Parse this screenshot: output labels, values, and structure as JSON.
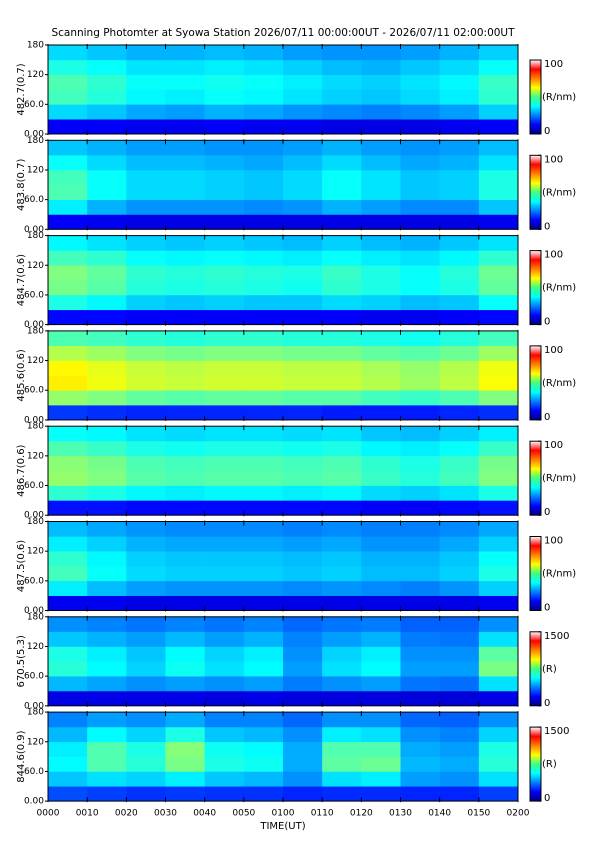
{
  "chart_data": [
    {
      "type": "heatmap",
      "title": "Scanning Photomter at Syowa Station 2026/07/11 00:00:00UT - 2026/07/11 02:00:00UT",
      "ylabel": "482.7(0.7)",
      "xlim": [
        0,
        120
      ],
      "xbins": [
        0,
        10,
        20,
        30,
        40,
        50,
        60,
        70,
        80,
        90,
        100,
        110,
        120
      ],
      "ylim": [
        0,
        180
      ],
      "ybins": [
        0,
        30,
        60,
        90,
        120,
        150,
        180
      ],
      "yticks": [
        180,
        120,
        {
          "value": 60,
          "label": "60.0"
        },
        {
          "value": 0,
          "label": "0.00"
        }
      ],
      "clim": [
        0,
        100
      ],
      "cticks": [
        100,
        0
      ],
      "clabel": "(R/nm)",
      "values": [
        [
          12,
          12,
          11,
          11,
          12,
          11,
          11,
          10,
          10,
          10,
          11,
          12
        ],
        [
          34,
          32,
          29,
          28,
          30,
          29,
          27,
          26,
          25,
          26,
          28,
          33
        ],
        [
          44,
          41,
          37,
          36,
          38,
          37,
          35,
          33,
          32,
          34,
          36,
          42
        ],
        [
          45,
          42,
          38,
          38,
          39,
          38,
          36,
          34,
          33,
          35,
          37,
          43
        ],
        [
          40,
          38,
          35,
          35,
          36,
          35,
          33,
          31,
          30,
          32,
          34,
          38
        ],
        [
          34,
          32,
          30,
          30,
          31,
          30,
          28,
          27,
          27,
          28,
          30,
          33
        ]
      ]
    },
    {
      "type": "heatmap",
      "ylabel": "483.8(0.7)",
      "xlim": [
        0,
        120
      ],
      "xbins": [
        0,
        10,
        20,
        30,
        40,
        50,
        60,
        70,
        80,
        90,
        100,
        110,
        120
      ],
      "ylim": [
        0,
        180
      ],
      "ybins": [
        0,
        30,
        60,
        90,
        120,
        150,
        180
      ],
      "yticks": [
        180,
        120,
        {
          "value": 60,
          "label": "60.0"
        },
        {
          "value": 0,
          "label": "0.00"
        }
      ],
      "clim": [
        0,
        100
      ],
      "cticks": [
        100,
        0
      ],
      "clabel": "(R/nm)",
      "values": [
        [
          12,
          11,
          10,
          10,
          10,
          10,
          10,
          10,
          10,
          10,
          10,
          11
        ],
        [
          36,
          30,
          27,
          27,
          27,
          26,
          27,
          30,
          28,
          26,
          26,
          32
        ],
        [
          45,
          38,
          34,
          34,
          33,
          32,
          34,
          38,
          35,
          32,
          33,
          40
        ],
        [
          44,
          38,
          34,
          34,
          33,
          32,
          34,
          38,
          35,
          32,
          33,
          40
        ],
        [
          38,
          34,
          31,
          31,
          30,
          29,
          31,
          34,
          31,
          29,
          30,
          35
        ],
        [
          32,
          30,
          28,
          28,
          27,
          27,
          28,
          30,
          28,
          27,
          28,
          31
        ]
      ]
    },
    {
      "type": "heatmap",
      "ylabel": "484.7(0.6)",
      "xlim": [
        0,
        120
      ],
      "xbins": [
        0,
        10,
        20,
        30,
        40,
        50,
        60,
        70,
        80,
        90,
        100,
        110,
        120
      ],
      "ylim": [
        0,
        180
      ],
      "ybins": [
        0,
        30,
        60,
        90,
        120,
        150,
        180
      ],
      "yticks": [
        180,
        120,
        {
          "value": 60,
          "label": "60.0"
        },
        {
          "value": 0,
          "label": "0.00"
        }
      ],
      "clim": [
        0,
        100
      ],
      "cticks": [
        100,
        0
      ],
      "clabel": "(R/nm)",
      "values": [
        [
          13,
          13,
          12,
          12,
          12,
          12,
          12,
          12,
          11,
          11,
          12,
          13
        ],
        [
          40,
          37,
          33,
          32,
          33,
          32,
          32,
          34,
          33,
          31,
          32,
          38
        ],
        [
          49,
          46,
          41,
          40,
          41,
          40,
          39,
          42,
          40,
          38,
          40,
          47
        ],
        [
          50,
          47,
          42,
          41,
          42,
          41,
          40,
          43,
          40,
          38,
          41,
          48
        ],
        [
          44,
          42,
          38,
          37,
          38,
          37,
          36,
          38,
          36,
          35,
          37,
          42
        ],
        [
          37,
          35,
          33,
          32,
          33,
          32,
          31,
          33,
          31,
          30,
          32,
          35
        ]
      ]
    },
    {
      "type": "heatmap",
      "ylabel": "485.6(0.6)",
      "xlim": [
        0,
        120
      ],
      "xbins": [
        0,
        10,
        20,
        30,
        40,
        50,
        60,
        70,
        80,
        90,
        100,
        110,
        120
      ],
      "ylim": [
        0,
        180
      ],
      "ybins": [
        0,
        30,
        60,
        90,
        120,
        150,
        180
      ],
      "yticks": [
        180,
        120,
        {
          "value": 60,
          "label": "60.0"
        },
        {
          "value": 0,
          "label": "0.00"
        }
      ],
      "clim": [
        0,
        100
      ],
      "cticks": [
        100,
        0
      ],
      "clabel": "(R/nm)",
      "values": [
        [
          18,
          17,
          16,
          16,
          16,
          16,
          16,
          15,
          15,
          15,
          16,
          17
        ],
        [
          52,
          50,
          47,
          46,
          47,
          47,
          46,
          46,
          44,
          43,
          45,
          50
        ],
        [
          64,
          61,
          58,
          57,
          58,
          58,
          57,
          57,
          55,
          53,
          56,
          62
        ],
        [
          63,
          60,
          57,
          56,
          57,
          57,
          56,
          56,
          54,
          52,
          55,
          61
        ],
        [
          55,
          53,
          50,
          49,
          50,
          50,
          49,
          49,
          47,
          46,
          48,
          53
        ],
        [
          45,
          44,
          42,
          41,
          42,
          42,
          41,
          41,
          40,
          39,
          41,
          44
        ]
      ]
    },
    {
      "type": "heatmap",
      "ylabel": "486.7(0.6)",
      "xlim": [
        0,
        120
      ],
      "xbins": [
        0,
        10,
        20,
        30,
        40,
        50,
        60,
        70,
        80,
        90,
        100,
        110,
        120
      ],
      "ylim": [
        0,
        180
      ],
      "ybins": [
        0,
        30,
        60,
        90,
        120,
        150,
        180
      ],
      "yticks": [
        180,
        120,
        {
          "value": 60,
          "label": "60.0"
        },
        {
          "value": 0,
          "label": "0.00"
        }
      ],
      "clim": [
        0,
        100
      ],
      "cticks": [
        100,
        0
      ],
      "clabel": "(R/nm)",
      "values": [
        [
          14,
          14,
          13,
          13,
          13,
          13,
          13,
          13,
          12,
          12,
          13,
          14
        ],
        [
          42,
          40,
          37,
          36,
          37,
          37,
          36,
          37,
          34,
          33,
          35,
          40
        ],
        [
          52,
          50,
          46,
          45,
          46,
          46,
          45,
          46,
          43,
          41,
          44,
          50
        ],
        [
          51,
          49,
          45,
          44,
          45,
          45,
          44,
          45,
          42,
          40,
          43,
          49
        ],
        [
          45,
          43,
          40,
          39,
          40,
          40,
          39,
          40,
          37,
          36,
          38,
          43
        ],
        [
          38,
          37,
          35,
          34,
          35,
          35,
          34,
          35,
          32,
          31,
          33,
          36
        ]
      ]
    },
    {
      "type": "heatmap",
      "ylabel": "487.5(0.6)",
      "xlim": [
        0,
        120
      ],
      "xbins": [
        0,
        10,
        20,
        30,
        40,
        50,
        60,
        70,
        80,
        90,
        100,
        110,
        120
      ],
      "ylim": [
        0,
        180
      ],
      "ybins": [
        0,
        30,
        60,
        90,
        120,
        150,
        180
      ],
      "yticks": [
        180,
        120,
        {
          "value": 60,
          "label": "60.0"
        },
        {
          "value": 0,
          "label": "0.00"
        }
      ],
      "clim": [
        0,
        100
      ],
      "cticks": [
        100,
        0
      ],
      "clabel": "(R/nm)",
      "values": [
        [
          11,
          11,
          10,
          10,
          10,
          10,
          10,
          10,
          10,
          10,
          10,
          11
        ],
        [
          36,
          31,
          28,
          27,
          27,
          27,
          26,
          27,
          26,
          25,
          27,
          33
        ],
        [
          44,
          38,
          34,
          33,
          33,
          33,
          32,
          33,
          31,
          31,
          33,
          40
        ],
        [
          42,
          37,
          33,
          32,
          32,
          32,
          31,
          32,
          30,
          30,
          32,
          38
        ],
        [
          36,
          33,
          30,
          29,
          29,
          29,
          28,
          29,
          27,
          27,
          29,
          33
        ],
        [
          31,
          29,
          27,
          26,
          26,
          26,
          25,
          26,
          25,
          25,
          26,
          29
        ]
      ]
    },
    {
      "type": "heatmap",
      "ylabel": "670.5(5.3)",
      "xlim": [
        0,
        120
      ],
      "xbins": [
        0,
        10,
        20,
        30,
        40,
        50,
        60,
        70,
        80,
        90,
        100,
        110,
        120
      ],
      "ylim": [
        0,
        180
      ],
      "ybins": [
        0,
        30,
        60,
        90,
        120,
        150,
        180
      ],
      "yticks": [
        180,
        120,
        {
          "value": 60,
          "label": "60.0"
        },
        {
          "value": 0,
          "label": "0.00"
        }
      ],
      "clim": [
        0,
        1500
      ],
      "cticks": [
        1500,
        0
      ],
      "clabel": "(R)",
      "values": [
        [
          150,
          150,
          150,
          150,
          140,
          150,
          140,
          140,
          140,
          130,
          130,
          150
        ],
        [
          460,
          430,
          400,
          420,
          400,
          420,
          370,
          400,
          420,
          360,
          350,
          520
        ],
        [
          620,
          560,
          500,
          580,
          520,
          560,
          420,
          520,
          560,
          420,
          420,
          740
        ],
        [
          600,
          540,
          480,
          560,
          500,
          540,
          400,
          500,
          540,
          400,
          400,
          700
        ],
        [
          480,
          450,
          420,
          460,
          420,
          450,
          380,
          420,
          450,
          370,
          360,
          520
        ],
        [
          400,
          380,
          360,
          380,
          360,
          380,
          340,
          360,
          370,
          330,
          330,
          400
        ]
      ]
    },
    {
      "type": "heatmap",
      "ylabel": "844.6(0.9)",
      "xlabel": "TIME(UT)",
      "xlim": [
        0,
        120
      ],
      "xbins": [
        0,
        10,
        20,
        30,
        40,
        50,
        60,
        70,
        80,
        90,
        100,
        110,
        120
      ],
      "ylim": [
        0,
        180
      ],
      "ybins": [
        0,
        30,
        60,
        90,
        120,
        150,
        180
      ],
      "xticks": [
        {
          "value": 0,
          "label": "0000"
        },
        {
          "value": 10,
          "label": "0010"
        },
        {
          "value": 20,
          "label": "0020"
        },
        {
          "value": 30,
          "label": "0030"
        },
        {
          "value": 40,
          "label": "0040"
        },
        {
          "value": 50,
          "label": "0050"
        },
        {
          "value": 60,
          "label": "0100"
        },
        {
          "value": 70,
          "label": "0110"
        },
        {
          "value": 80,
          "label": "0120"
        },
        {
          "value": 90,
          "label": "0130"
        },
        {
          "value": 100,
          "label": "0140"
        },
        {
          "value": 110,
          "label": "0150"
        },
        {
          "value": 120,
          "label": "0200"
        }
      ],
      "yticks": [
        180,
        120,
        {
          "value": 60,
          "label": "60.0"
        },
        {
          "value": 0,
          "label": "0.00"
        }
      ],
      "clim": [
        0,
        1500
      ],
      "cticks": [
        1500,
        0
      ],
      "clabel": "(R)",
      "values": [
        [
          300,
          280,
          260,
          270,
          260,
          260,
          240,
          250,
          250,
          240,
          240,
          280
        ],
        [
          480,
          520,
          500,
          540,
          480,
          460,
          400,
          520,
          540,
          420,
          400,
          520
        ],
        [
          560,
          680,
          620,
          740,
          600,
          580,
          440,
          700,
          720,
          460,
          440,
          620
        ],
        [
          540,
          680,
          600,
          760,
          580,
          560,
          440,
          680,
          680,
          440,
          420,
          600
        ],
        [
          460,
          560,
          500,
          600,
          480,
          460,
          400,
          540,
          520,
          400,
          380,
          500
        ],
        [
          380,
          420,
          400,
          440,
          380,
          380,
          340,
          400,
          400,
          340,
          330,
          400
        ]
      ]
    }
  ]
}
